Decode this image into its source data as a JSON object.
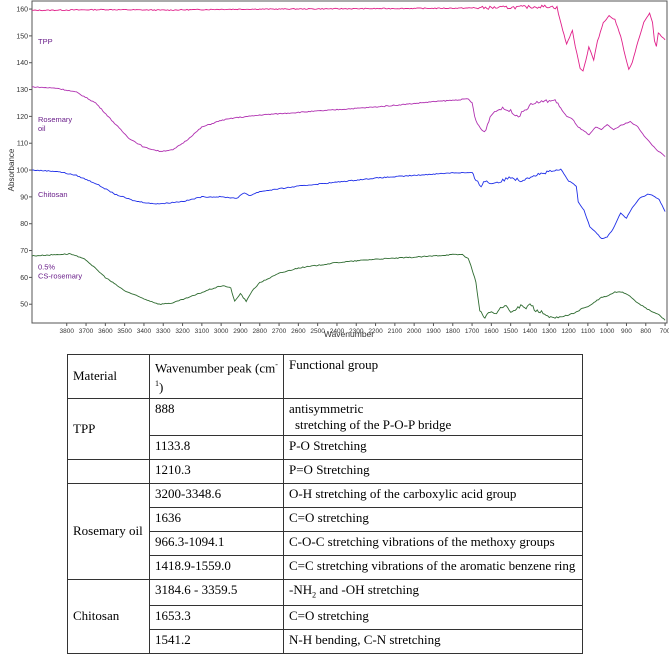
{
  "chart_data": {
    "type": "line",
    "xlabel": "Wavenumber",
    "ylabel": "Absorbance",
    "xlim": [
      3980,
      690
    ],
    "ylim": [
      43,
      163
    ],
    "x_ticks": [
      "3800",
      "3700",
      "3600",
      "3500",
      "3400",
      "3300",
      "3200",
      "3100",
      "3000",
      "2900",
      "2800",
      "2700",
      "2600",
      "2500",
      "2400",
      "2300",
      "2200",
      "2100",
      "2000",
      "1900",
      "1800",
      "1700",
      "1600",
      "1500",
      "1400",
      "1300",
      "1200",
      "1100",
      "1000",
      "900",
      "800",
      "700"
    ],
    "y_ticks": [
      "160",
      "150",
      "140",
      "130",
      "120",
      "110",
      "100",
      "90",
      "80",
      "70",
      "60",
      "50"
    ],
    "series": [
      {
        "name": "TPP",
        "color": "#e0208a",
        "points": [
          [
            3980,
            159.5
          ],
          [
            3600,
            159.8
          ],
          [
            3300,
            159.6
          ],
          [
            3000,
            159.9
          ],
          [
            2700,
            160.0
          ],
          [
            2400,
            160.1
          ],
          [
            2100,
            160.2
          ],
          [
            1800,
            160.3
          ],
          [
            1500,
            160.6
          ],
          [
            1400,
            160.8
          ],
          [
            1300,
            161.0
          ],
          [
            1260,
            160.5
          ],
          [
            1230,
            152
          ],
          [
            1210,
            147
          ],
          [
            1195,
            149.5
          ],
          [
            1180,
            152
          ],
          [
            1165,
            146
          ],
          [
            1140,
            138
          ],
          [
            1125,
            137
          ],
          [
            1110,
            141
          ],
          [
            1095,
            146
          ],
          [
            1085,
            144
          ],
          [
            1070,
            141
          ],
          [
            1050,
            148
          ],
          [
            1020,
            155
          ],
          [
            990,
            157.5
          ],
          [
            960,
            156
          ],
          [
            930,
            150
          ],
          [
            905,
            142
          ],
          [
            888,
            137.5
          ],
          [
            870,
            140
          ],
          [
            840,
            148
          ],
          [
            810,
            155
          ],
          [
            780,
            158.5
          ],
          [
            765,
            155
          ],
          [
            755,
            148
          ],
          [
            745,
            146
          ],
          [
            735,
            151
          ],
          [
            720,
            150
          ],
          [
            700,
            148.5
          ]
        ]
      },
      {
        "name": "Rosemary oil",
        "color": "#b030b0",
        "points": [
          [
            3980,
            131
          ],
          [
            3850,
            130.5
          ],
          [
            3750,
            129
          ],
          [
            3650,
            125
          ],
          [
            3560,
            118
          ],
          [
            3480,
            112
          ],
          [
            3400,
            108.5
          ],
          [
            3320,
            107
          ],
          [
            3250,
            107.5
          ],
          [
            3180,
            111
          ],
          [
            3100,
            116
          ],
          [
            3000,
            118.5
          ],
          [
            2926,
            119.5
          ],
          [
            2855,
            120
          ],
          [
            2800,
            120.5
          ],
          [
            2600,
            121.5
          ],
          [
            2400,
            122.5
          ],
          [
            2200,
            123.5
          ],
          [
            2000,
            124.8
          ],
          [
            1900,
            125.5
          ],
          [
            1800,
            126
          ],
          [
            1720,
            126.5
          ],
          [
            1700,
            125
          ],
          [
            1680,
            118
          ],
          [
            1650,
            115
          ],
          [
            1636,
            114
          ],
          [
            1620,
            117
          ],
          [
            1600,
            121
          ],
          [
            1550,
            123
          ],
          [
            1500,
            122
          ],
          [
            1460,
            120
          ],
          [
            1418,
            123
          ],
          [
            1380,
            125
          ],
          [
            1300,
            125.8
          ],
          [
            1270,
            126
          ],
          [
            1240,
            123
          ],
          [
            1210,
            120
          ],
          [
            1180,
            119
          ],
          [
            1150,
            116
          ],
          [
            1110,
            114
          ],
          [
            1094,
            113
          ],
          [
            1060,
            116
          ],
          [
            1030,
            115
          ],
          [
            1000,
            117
          ],
          [
            966,
            115
          ],
          [
            920,
            117
          ],
          [
            880,
            118
          ],
          [
            840,
            116
          ],
          [
            800,
            112
          ],
          [
            750,
            108
          ],
          [
            700,
            105
          ]
        ]
      },
      {
        "name": "Chitosan",
        "color": "#2030e8",
        "points": [
          [
            3980,
            100
          ],
          [
            3850,
            99.5
          ],
          [
            3750,
            98
          ],
          [
            3650,
            95
          ],
          [
            3550,
            91
          ],
          [
            3450,
            88.5
          ],
          [
            3359,
            87.5
          ],
          [
            3300,
            87.5
          ],
          [
            3184,
            88.5
          ],
          [
            3100,
            90
          ],
          [
            3000,
            90
          ],
          [
            2920,
            89.5
          ],
          [
            2880,
            91.5
          ],
          [
            2850,
            90.5
          ],
          [
            2800,
            92
          ],
          [
            2600,
            94
          ],
          [
            2400,
            95.5
          ],
          [
            2200,
            97
          ],
          [
            2000,
            98
          ],
          [
            1900,
            98.5
          ],
          [
            1800,
            99
          ],
          [
            1700,
            99
          ],
          [
            1680,
            96
          ],
          [
            1653,
            94
          ],
          [
            1640,
            96
          ],
          [
            1600,
            95
          ],
          [
            1541,
            96
          ],
          [
            1500,
            97.5
          ],
          [
            1450,
            96
          ],
          [
            1420,
            97
          ],
          [
            1380,
            98
          ],
          [
            1320,
            99
          ],
          [
            1280,
            99.5
          ],
          [
            1240,
            100.2
          ],
          [
            1200,
            96
          ],
          [
            1160,
            94
          ],
          [
            1150,
            88
          ],
          [
            1120,
            85
          ],
          [
            1090,
            79
          ],
          [
            1060,
            77
          ],
          [
            1030,
            74.5
          ],
          [
            1000,
            75
          ],
          [
            970,
            78
          ],
          [
            930,
            84
          ],
          [
            900,
            82
          ],
          [
            870,
            86
          ],
          [
            830,
            89.5
          ],
          [
            790,
            91
          ],
          [
            760,
            90.5
          ],
          [
            730,
            89
          ],
          [
            700,
            84.5
          ]
        ]
      },
      {
        "name": "0.5% CS-rosemary",
        "color": "#2e6b30",
        "points": [
          [
            3980,
            68
          ],
          [
            3850,
            68.5
          ],
          [
            3780,
            68.8
          ],
          [
            3700,
            66.5
          ],
          [
            3600,
            60
          ],
          [
            3500,
            55
          ],
          [
            3400,
            52
          ],
          [
            3320,
            50
          ],
          [
            3250,
            50.5
          ],
          [
            3150,
            53
          ],
          [
            3060,
            55.5
          ],
          [
            2990,
            57
          ],
          [
            2950,
            56
          ],
          [
            2930,
            51
          ],
          [
            2900,
            54
          ],
          [
            2870,
            51
          ],
          [
            2840,
            55
          ],
          [
            2800,
            58
          ],
          [
            2700,
            61.5
          ],
          [
            2600,
            63.5
          ],
          [
            2400,
            65.5
          ],
          [
            2200,
            66.8
          ],
          [
            2000,
            67.5
          ],
          [
            1900,
            68
          ],
          [
            1800,
            68.5
          ],
          [
            1750,
            68.5
          ],
          [
            1720,
            67
          ],
          [
            1700,
            63
          ],
          [
            1680,
            58
          ],
          [
            1660,
            48
          ],
          [
            1640,
            45
          ],
          [
            1620,
            46
          ],
          [
            1600,
            47.5
          ],
          [
            1580,
            46
          ],
          [
            1560,
            48
          ],
          [
            1530,
            49.5
          ],
          [
            1500,
            47
          ],
          [
            1470,
            48
          ],
          [
            1440,
            50
          ],
          [
            1420,
            48.5
          ],
          [
            1400,
            50.5
          ],
          [
            1370,
            47.5
          ],
          [
            1340,
            47
          ],
          [
            1300,
            45
          ],
          [
            1270,
            44.8
          ],
          [
            1230,
            45.5
          ],
          [
            1200,
            46
          ],
          [
            1160,
            47
          ],
          [
            1130,
            48.5
          ],
          [
            1100,
            49
          ],
          [
            1060,
            51
          ],
          [
            1030,
            52.5
          ],
          [
            1000,
            53
          ],
          [
            960,
            54.5
          ],
          [
            920,
            54.5
          ],
          [
            890,
            53.5
          ],
          [
            850,
            51
          ],
          [
            800,
            48.5
          ],
          [
            760,
            47
          ],
          [
            730,
            46
          ],
          [
            700,
            44
          ]
        ]
      }
    ]
  },
  "table": {
    "headers": {
      "material": "Material",
      "peak_main": "Wavenumber peak (cm",
      "peak_sup": "-1",
      "peak_end": ")",
      "group": "Functional group"
    },
    "tpp": {
      "material": "TPP",
      "r1": {
        "peak": "888",
        "group_a": "antisymmetric",
        "group_b": "stretching of the P-O-P bridge"
      },
      "r2": {
        "peak": "1133.8",
        "group": "P-O Stretching"
      },
      "r3": {
        "peak": "1210.3",
        "group": "P=O Stretching"
      }
    },
    "rosemary": {
      "material": "Rosemary oil",
      "r1": {
        "peak": "3200-3348.6",
        "group": "O-H stretching of the carboxylic acid group"
      },
      "r2": {
        "peak": "1636",
        "group": "C=O stretching"
      },
      "r3": {
        "peak": "966.3-1094.1",
        "group": "C-O-C stretching vibrations of the methoxy groups"
      },
      "r4": {
        "peak": "1418.9-1559.0",
        "group": "C=C stretching vibrations of the aromatic benzene ring"
      }
    },
    "chitosan": {
      "material": "Chitosan",
      "r1": {
        "peak": "3184.6 - 3359.5",
        "group_a": "-NH",
        "group_sub": "2",
        "group_b": " and -OH stretching"
      },
      "r2": {
        "peak": "1653.3",
        "group": "C=O stretching"
      },
      "r3": {
        "peak": "1541.2",
        "group": "N-H bending, C-N stretching"
      }
    }
  }
}
